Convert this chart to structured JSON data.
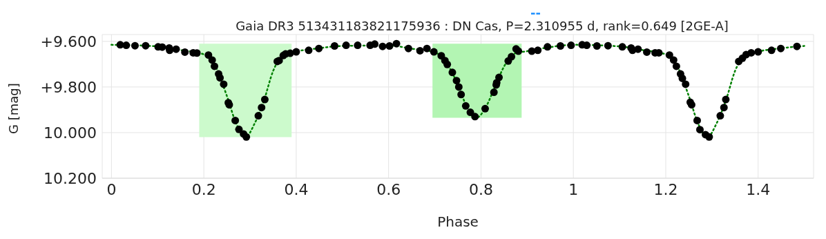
{
  "chart_data": {
    "type": "scatter",
    "title": "Gaia DR3 513431183821175936 : DN Cas, P=2.310955 d, rank=0.649 [2GE-A]",
    "xlabel": "Phase",
    "ylabel": "G [mag]",
    "annotations": [
      "--"
    ],
    "xlim": [
      -0.02,
      1.52
    ],
    "xticks": [
      0,
      0.2,
      0.4,
      0.6,
      0.8,
      1,
      1.2,
      1.4
    ],
    "ylim": [
      10.2,
      9.57
    ],
    "yticks": [
      {
        "value": 9.6,
        "label": "+9.600"
      },
      {
        "value": 9.8,
        "label": "+9.800"
      },
      {
        "value": 10,
        "label": "10.000"
      },
      {
        "value": 10.2,
        "label": "10.200"
      }
    ],
    "grid": true,
    "legend": false,
    "marker": "circle",
    "bands": [
      {
        "axis": "x",
        "from": 0.19,
        "to": 0.39,
        "color": "#ccfacc"
      },
      {
        "axis": "x",
        "from": 0.695,
        "to": 0.888,
        "color": "#b3f5b3"
      }
    ],
    "series": [
      {
        "color": "#000000",
        "x": [
          0.019,
          0.032,
          0.051,
          0.074,
          0.101,
          0.11,
          0.125,
          0.126,
          0.14,
          0.159,
          0.177,
          0.185,
          0.21,
          0.218,
          0.223,
          0.232,
          0.235,
          0.243,
          0.253,
          0.255,
          0.268,
          0.276,
          0.286,
          0.292,
          0.318,
          0.325,
          0.332,
          0.359,
          0.363,
          0.372,
          0.377,
          0.387,
          0.4,
          0.427,
          0.449,
          0.483,
          0.508,
          0.533,
          0.56,
          0.57,
          0.587,
          0.602,
          0.617,
          0.643,
          0.668,
          0.683,
          0.698,
          0.714,
          0.722,
          0.727,
          0.738,
          0.747,
          0.752,
          0.757,
          0.767,
          0.777,
          0.787,
          0.809,
          0.828,
          0.833,
          0.834,
          0.839,
          0.859,
          0.866,
          0.876,
          0.881,
          0.91,
          0.923,
          0.944,
          0.972,
          0.995,
          1.019,
          1.029,
          1.051,
          1.075,
          1.106,
          1.125,
          1.128,
          1.14,
          1.159,
          1.177,
          1.185,
          1.208,
          1.217,
          1.223,
          1.232,
          1.236,
          1.243,
          1.253,
          1.256,
          1.268,
          1.274,
          1.286,
          1.294,
          1.318,
          1.326,
          1.33,
          1.358,
          1.366,
          1.374,
          1.385,
          1.4,
          1.429,
          1.449,
          1.484
        ],
        "values": [
          9.615,
          9.617,
          9.619,
          9.619,
          9.624,
          9.625,
          9.629,
          9.639,
          9.634,
          9.647,
          9.65,
          9.651,
          9.66,
          9.682,
          9.709,
          9.743,
          9.76,
          9.788,
          9.869,
          9.878,
          9.947,
          9.986,
          10.006,
          10.019,
          9.926,
          9.89,
          9.855,
          9.688,
          9.684,
          9.662,
          9.655,
          9.652,
          9.646,
          9.639,
          9.631,
          9.62,
          9.617,
          9.617,
          9.617,
          9.612,
          9.622,
          9.62,
          9.61,
          9.631,
          9.641,
          9.631,
          9.646,
          9.663,
          9.684,
          9.701,
          9.736,
          9.772,
          9.8,
          9.833,
          9.883,
          9.911,
          9.93,
          9.895,
          9.823,
          9.791,
          9.781,
          9.758,
          9.686,
          9.667,
          9.633,
          9.643,
          9.643,
          9.639,
          9.624,
          9.62,
          9.617,
          9.615,
          9.617,
          9.62,
          9.619,
          9.624,
          9.629,
          9.639,
          9.634,
          9.647,
          9.65,
          9.65,
          9.66,
          9.682,
          9.709,
          9.743,
          9.762,
          9.788,
          9.867,
          9.878,
          9.947,
          9.987,
          10.009,
          10.019,
          9.926,
          9.89,
          9.855,
          9.688,
          9.674,
          9.658,
          9.65,
          9.646,
          9.639,
          9.631,
          9.622
        ]
      },
      {
        "type": "line",
        "color": "#008000",
        "marker": "none",
        "line_style": "dotted",
        "x": [
          0,
          0.1,
          0.15,
          0.2,
          0.22,
          0.25,
          0.27,
          0.29,
          0.31,
          0.33,
          0.35,
          0.37,
          0.4,
          0.45,
          0.5,
          0.6,
          0.65,
          0.7,
          0.72,
          0.75,
          0.77,
          0.79,
          0.81,
          0.83,
          0.85,
          0.87,
          0.9,
          0.95,
          1,
          1.1,
          1.15,
          1.2,
          1.22,
          1.25,
          1.27,
          1.29,
          1.31,
          1.33,
          1.35,
          1.37,
          1.4,
          1.45,
          1.5
        ],
        "values": [
          9.615,
          9.622,
          9.638,
          9.657,
          9.69,
          9.84,
          9.96,
          10.02,
          9.96,
          9.86,
          9.73,
          9.665,
          9.645,
          9.63,
          9.62,
          9.618,
          9.632,
          9.648,
          9.68,
          9.79,
          9.89,
          9.935,
          9.89,
          9.8,
          9.71,
          9.655,
          9.643,
          9.625,
          9.615,
          9.622,
          9.638,
          9.657,
          9.69,
          9.84,
          9.96,
          10.02,
          9.96,
          9.86,
          9.73,
          9.665,
          9.645,
          9.63,
          9.62
        ]
      }
    ]
  }
}
